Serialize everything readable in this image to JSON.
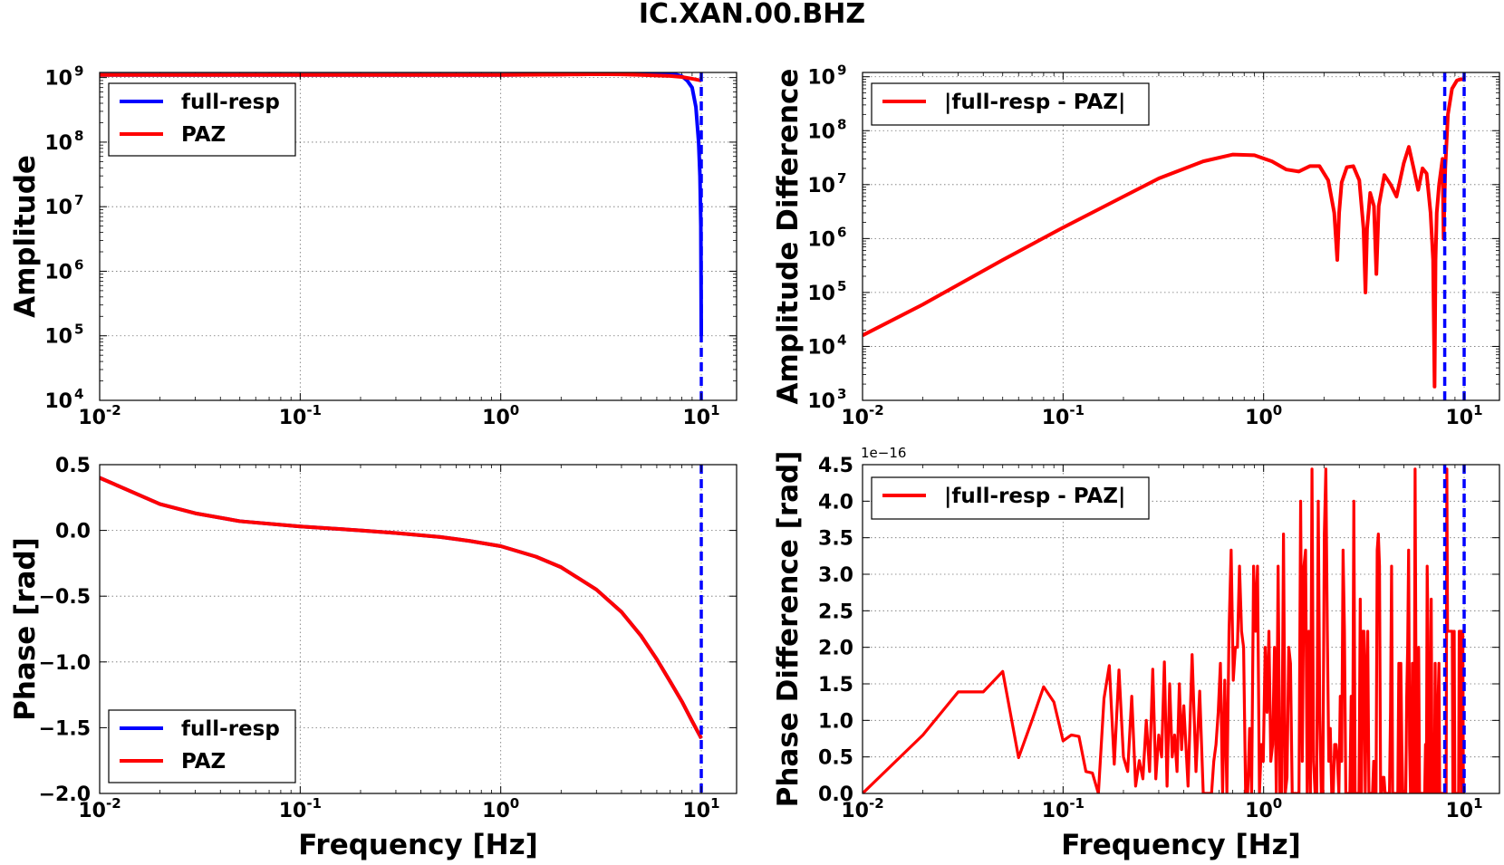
{
  "figure": {
    "title": "IC.XAN.00.BHZ"
  },
  "chart_data": [
    {
      "id": "amplitude",
      "type": "line",
      "title": "",
      "xlabel": "",
      "ylabel": "Amplitude",
      "xscale": "log",
      "yscale": "log",
      "xlim": [
        0.01,
        15
      ],
      "ylim": [
        10000,
        1200000000
      ],
      "xticks": [
        {
          "base": "10",
          "exp": "-2",
          "v": 0.01
        },
        {
          "base": "10",
          "exp": "-1",
          "v": 0.1
        },
        {
          "base": "10",
          "exp": "0",
          "v": 1
        },
        {
          "base": "10",
          "exp": "1",
          "v": 10
        }
      ],
      "yticks": [
        {
          "base": "10",
          "exp": "4",
          "v": 10000
        },
        {
          "base": "10",
          "exp": "5",
          "v": 100000
        },
        {
          "base": "10",
          "exp": "6",
          "v": 1000000
        },
        {
          "base": "10",
          "exp": "7",
          "v": 10000000
        },
        {
          "base": "10",
          "exp": "8",
          "v": 100000000
        },
        {
          "base": "10",
          "exp": "9",
          "v": 1000000000
        }
      ],
      "grid": true,
      "legend": "top-left",
      "vlines": [
        {
          "x": 10,
          "color": "#0000ff"
        }
      ],
      "series": [
        {
          "name": "full-resp",
          "color": "#0000ff",
          "x": [
            0.01,
            0.1,
            1,
            2,
            4,
            5.5,
            7,
            8,
            8.5,
            9,
            9.4,
            9.7,
            9.85,
            9.95,
            10
          ],
          "y": [
            1100000000,
            1100000000,
            1100000000,
            1120000000,
            1150000000,
            1200000000,
            1180000000,
            1050000000,
            900000000,
            700000000,
            350000000,
            100000000,
            30000000,
            5000000,
            100000
          ]
        },
        {
          "name": "PAZ",
          "color": "#ff0000",
          "x": [
            0.01,
            0.1,
            1,
            2,
            3,
            4,
            5,
            7,
            8,
            9,
            10
          ],
          "y": [
            1100000000,
            1100000000,
            1100000000,
            1110000000,
            1130000000,
            1120000000,
            1100000000,
            1060000000,
            1020000000,
            960000000,
            900000000
          ]
        }
      ]
    },
    {
      "id": "amplitude-difference",
      "type": "line",
      "title": "",
      "xlabel": "",
      "ylabel": "Amplitude Difference",
      "xscale": "log",
      "yscale": "log",
      "xlim": [
        0.01,
        15
      ],
      "ylim": [
        1000,
        1200000000
      ],
      "xticks": [
        {
          "base": "10",
          "exp": "-2",
          "v": 0.01
        },
        {
          "base": "10",
          "exp": "-1",
          "v": 0.1
        },
        {
          "base": "10",
          "exp": "0",
          "v": 1
        },
        {
          "base": "10",
          "exp": "1",
          "v": 10
        }
      ],
      "yticks": [
        {
          "base": "10",
          "exp": "3",
          "v": 1000
        },
        {
          "base": "10",
          "exp": "4",
          "v": 10000
        },
        {
          "base": "10",
          "exp": "5",
          "v": 100000
        },
        {
          "base": "10",
          "exp": "6",
          "v": 1000000
        },
        {
          "base": "10",
          "exp": "7",
          "v": 10000000
        },
        {
          "base": "10",
          "exp": "8",
          "v": 100000000
        },
        {
          "base": "10",
          "exp": "9",
          "v": 1000000000
        }
      ],
      "grid": true,
      "legend": "top-left",
      "vlines": [
        {
          "x": 8,
          "color": "#0000ff"
        },
        {
          "x": 10,
          "color": "#0000ff"
        }
      ],
      "series": [
        {
          "name": "|full-resp - PAZ|",
          "color": "#ff0000",
          "x": [
            0.01,
            0.02,
            0.05,
            0.1,
            0.2,
            0.3,
            0.5,
            0.7,
            0.9,
            1.1,
            1.3,
            1.5,
            1.7,
            1.9,
            2.1,
            2.25,
            2.33,
            2.38,
            2.45,
            2.6,
            2.8,
            3.0,
            3.15,
            3.22,
            3.28,
            3.4,
            3.55,
            3.65,
            3.75,
            4.0,
            4.3,
            4.6,
            5.0,
            5.3,
            5.6,
            5.9,
            6.2,
            6.5,
            6.8,
            7.0,
            7.12,
            7.2,
            7.3,
            7.5,
            7.8,
            7.9,
            8.05,
            8.3,
            8.7,
            9.2,
            9.6,
            10.0
          ],
          "y": [
            16000,
            60000,
            400000,
            1600000,
            6000000,
            13000000,
            27000000,
            36000000,
            35000000,
            27000000,
            19000000,
            17500000,
            22000000,
            22000000,
            12000000,
            3000000,
            400000,
            3000000,
            11000000,
            21000000,
            22000000,
            12000000,
            1500000,
            100000,
            1500000,
            7000000,
            4000000,
            220000,
            4000000,
            15000000,
            10000000,
            6000000,
            25000000,
            50000000,
            20000000,
            8000000,
            20000000,
            16000000,
            3000000,
            400000,
            1800,
            400000,
            3000000,
            10000000,
            30000000,
            1000000,
            20000000,
            200000000,
            600000000,
            850000000,
            900000000,
            900000000
          ]
        }
      ]
    },
    {
      "id": "phase",
      "type": "line",
      "title": "",
      "xlabel": "Frequency [Hz]",
      "ylabel": "Phase [rad]",
      "xscale": "log",
      "yscale": "linear",
      "xlim": [
        0.01,
        15
      ],
      "ylim": [
        -2.0,
        0.5
      ],
      "xticks": [
        {
          "base": "10",
          "exp": "-2",
          "v": 0.01
        },
        {
          "base": "10",
          "exp": "-1",
          "v": 0.1
        },
        {
          "base": "10",
          "exp": "0",
          "v": 1
        },
        {
          "base": "10",
          "exp": "1",
          "v": 10
        }
      ],
      "yticks": [
        {
          "label": "0.5",
          "v": 0.5
        },
        {
          "label": "0.0",
          "v": 0.0
        },
        {
          "label": "−0.5",
          "v": -0.5
        },
        {
          "label": "−1.0",
          "v": -1.0
        },
        {
          "label": "−1.5",
          "v": -1.5
        },
        {
          "label": "−2.0",
          "v": -2.0
        }
      ],
      "grid": true,
      "legend": "bottom-left",
      "vlines": [
        {
          "x": 10,
          "color": "#0000ff"
        }
      ],
      "series": [
        {
          "name": "full-resp",
          "color": "#0000ff",
          "x": [
            0.01,
            0.02,
            0.03,
            0.05,
            0.1,
            0.2,
            0.3,
            0.5,
            0.7,
            1,
            1.5,
            2,
            3,
            4,
            5,
            6,
            7,
            8,
            9,
            10
          ],
          "y": [
            0.4,
            0.2,
            0.13,
            0.07,
            0.03,
            0.0,
            -0.02,
            -0.05,
            -0.08,
            -0.12,
            -0.2,
            -0.28,
            -0.45,
            -0.62,
            -0.8,
            -0.98,
            -1.15,
            -1.3,
            -1.45,
            -1.58
          ]
        },
        {
          "name": "PAZ",
          "color": "#ff0000",
          "x": [
            0.01,
            0.02,
            0.03,
            0.05,
            0.1,
            0.2,
            0.3,
            0.5,
            0.7,
            1,
            1.5,
            2,
            3,
            4,
            5,
            6,
            7,
            8,
            9,
            10
          ],
          "y": [
            0.4,
            0.2,
            0.13,
            0.07,
            0.03,
            0.0,
            -0.02,
            -0.05,
            -0.08,
            -0.12,
            -0.2,
            -0.28,
            -0.45,
            -0.62,
            -0.8,
            -0.98,
            -1.15,
            -1.3,
            -1.45,
            -1.58
          ]
        }
      ]
    },
    {
      "id": "phase-difference",
      "type": "line",
      "title": "",
      "xlabel": "Frequency [Hz]",
      "ylabel": "Phase Difference [rad]",
      "xscale": "log",
      "yscale": "linear",
      "xlim": [
        0.01,
        15
      ],
      "ylim": [
        0.0,
        4.5
      ],
      "offset_text": "1e−16",
      "xticks": [
        {
          "base": "10",
          "exp": "-2",
          "v": 0.01
        },
        {
          "base": "10",
          "exp": "-1",
          "v": 0.1
        },
        {
          "base": "10",
          "exp": "0",
          "v": 1
        },
        {
          "base": "10",
          "exp": "1",
          "v": 10
        }
      ],
      "yticks": [
        {
          "label": "0.0",
          "v": 0.0
        },
        {
          "label": "0.5",
          "v": 0.5
        },
        {
          "label": "1.0",
          "v": 1.0
        },
        {
          "label": "1.5",
          "v": 1.5
        },
        {
          "label": "2.0",
          "v": 2.0
        },
        {
          "label": "2.5",
          "v": 2.5
        },
        {
          "label": "3.0",
          "v": 3.0
        },
        {
          "label": "3.5",
          "v": 3.5
        },
        {
          "label": "4.0",
          "v": 4.0
        },
        {
          "label": "4.5",
          "v": 4.5
        }
      ],
      "grid": true,
      "legend": "top-left",
      "vlines": [
        {
          "x": 8,
          "color": "#0000ff"
        },
        {
          "x": 10,
          "color": "#0000ff"
        }
      ],
      "series": [
        {
          "name": "|full-resp - PAZ|",
          "color": "#ff0000",
          "noisy_from": 0.55,
          "x": [
            0.01,
            0.02,
            0.03,
            0.04,
            0.05,
            0.06,
            0.07,
            0.08,
            0.09,
            0.1,
            0.11,
            0.12,
            0.13,
            0.14,
            0.15,
            0.16,
            0.17,
            0.18,
            0.19,
            0.2,
            0.21,
            0.22,
            0.23,
            0.24,
            0.25,
            0.26,
            0.27,
            0.28,
            0.29,
            0.3,
            0.31,
            0.32,
            0.33,
            0.34,
            0.35,
            0.36,
            0.37,
            0.38,
            0.39,
            0.4,
            0.42,
            0.44,
            0.46,
            0.48,
            0.5
          ],
          "y": [
            0.0,
            0.8,
            1.39,
            1.39,
            1.67,
            0.49,
            1.0,
            1.46,
            1.25,
            0.72,
            0.8,
            0.78,
            0.3,
            0.28,
            0.0,
            1.3,
            1.75,
            0.4,
            1.69,
            0.5,
            0.3,
            1.33,
            0.1,
            0.45,
            0.2,
            1.0,
            0.3,
            1.7,
            0.2,
            0.8,
            0.5,
            1.8,
            0.1,
            1.5,
            0.5,
            0.8,
            0.3,
            1.5,
            0.6,
            1.2,
            0.1,
            1.9,
            0.3,
            1.4,
            0.0
          ]
        }
      ]
    }
  ]
}
